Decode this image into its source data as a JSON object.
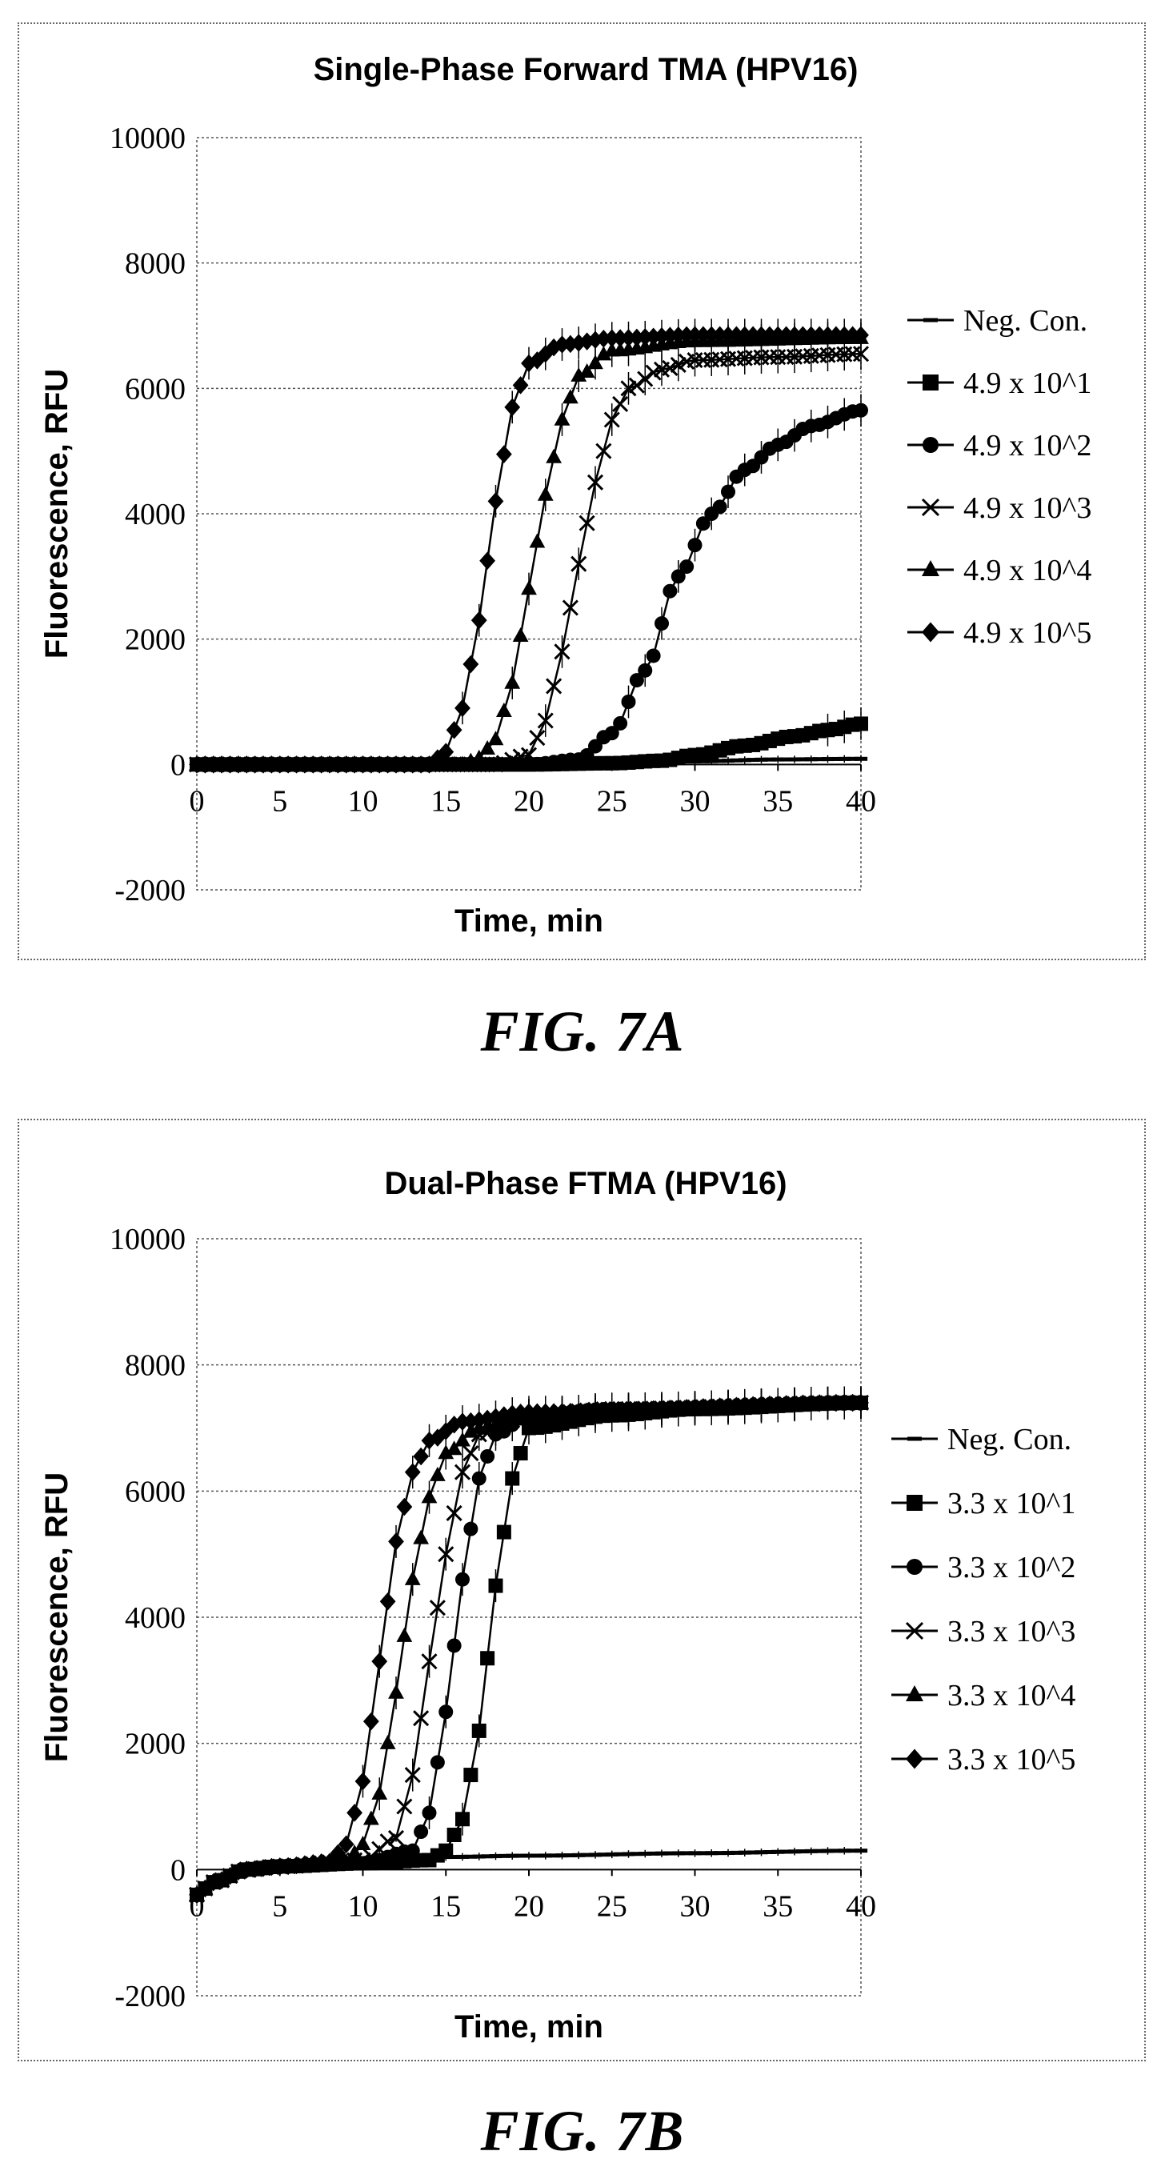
{
  "chart_data": [
    {
      "type": "line",
      "title": "Single-Phase Forward TMA (HPV16)",
      "xlabel": "Time, min",
      "ylabel": "Fluorescence, RFU",
      "xlim": [
        0,
        40
      ],
      "ylim": [
        -2000,
        10000
      ],
      "xticks": [
        "0",
        "5",
        "10",
        "15",
        "20",
        "25",
        "30",
        "35",
        "40"
      ],
      "yticks": [
        "-2000",
        "0",
        "2000",
        "4000",
        "6000",
        "8000",
        "10000"
      ],
      "grid": true,
      "legend_position": "right",
      "series": [
        {
          "name": "Neg. Con.",
          "marker": "dash",
          "x": [
            0,
            5,
            10,
            15,
            20,
            25,
            30,
            35,
            40
          ],
          "y": [
            0,
            0,
            0,
            0,
            0,
            20,
            50,
            80,
            90
          ]
        },
        {
          "name": "4.9 x 10^1",
          "marker": "square",
          "x": [
            0,
            10,
            20,
            25,
            28,
            30,
            33,
            36,
            38,
            40
          ],
          "y": [
            0,
            0,
            0,
            20,
            60,
            150,
            300,
            450,
            550,
            650
          ]
        },
        {
          "name": "4.9 x 10^2",
          "marker": "circle",
          "x": [
            0,
            10,
            20,
            23,
            25,
            27,
            29,
            31,
            33,
            35,
            37,
            40
          ],
          "y": [
            0,
            0,
            0,
            80,
            500,
            1500,
            3000,
            4000,
            4700,
            5100,
            5400,
            5650
          ]
        },
        {
          "name": "4.9 x 10^3",
          "marker": "x",
          "x": [
            0,
            10,
            18,
            20,
            21,
            22,
            23,
            24,
            25,
            26,
            28,
            30,
            35,
            40
          ],
          "y": [
            0,
            0,
            0,
            150,
            700,
            1800,
            3200,
            4500,
            5500,
            6000,
            6300,
            6450,
            6500,
            6550
          ]
        },
        {
          "name": "4.9 x 10^4",
          "marker": "triangle",
          "x": [
            0,
            10,
            16,
            17,
            18,
            19,
            20,
            21,
            22,
            23,
            25,
            30,
            40
          ],
          "y": [
            0,
            0,
            0,
            100,
            400,
            1300,
            2800,
            4300,
            5500,
            6200,
            6600,
            6750,
            6800
          ]
        },
        {
          "name": "4.9 x 10^5",
          "marker": "diamond",
          "x": [
            0,
            10,
            14,
            15,
            16,
            17,
            18,
            19,
            20,
            22,
            25,
            30,
            40
          ],
          "y": [
            0,
            0,
            0,
            200,
            900,
            2300,
            4200,
            5700,
            6400,
            6700,
            6800,
            6850,
            6850
          ]
        }
      ]
    },
    {
      "type": "line",
      "title": "Dual-Phase FTMA (HPV16)",
      "xlabel": "Time, min",
      "ylabel": "Fluorescence, RFU",
      "xlim": [
        0,
        40
      ],
      "ylim": [
        -2000,
        10000
      ],
      "xticks": [
        "0",
        "5",
        "10",
        "15",
        "20",
        "25",
        "30",
        "35",
        "40"
      ],
      "yticks": [
        "-2000",
        "0",
        "2000",
        "4000",
        "6000",
        "8000",
        "10000"
      ],
      "grid": true,
      "legend_position": "right",
      "series": [
        {
          "name": "Neg. Con.",
          "marker": "dash",
          "x": [
            0,
            1,
            2,
            3,
            5,
            8,
            12,
            15,
            20,
            30,
            40
          ],
          "y": [
            -400,
            -200,
            -60,
            0,
            50,
            100,
            150,
            200,
            220,
            260,
            300
          ]
        },
        {
          "name": "3.3 x 10^1",
          "marker": "square",
          "x": [
            0,
            1,
            3,
            5,
            10,
            14,
            15,
            16,
            17,
            18,
            19,
            20,
            25,
            30,
            40
          ],
          "y": [
            -400,
            -200,
            0,
            50,
            100,
            150,
            300,
            800,
            2200,
            4500,
            6200,
            7000,
            7200,
            7300,
            7400
          ]
        },
        {
          "name": "3.3 x 10^2",
          "marker": "circle",
          "x": [
            0,
            1,
            3,
            5,
            10,
            13,
            14,
            15,
            16,
            17,
            18,
            20,
            25,
            40
          ],
          "y": [
            -400,
            -200,
            0,
            50,
            100,
            300,
            900,
            2500,
            4600,
            6200,
            6900,
            7200,
            7300,
            7400
          ]
        },
        {
          "name": "3.3 x 10^3",
          "marker": "x",
          "x": [
            0,
            1,
            3,
            5,
            10,
            12,
            13,
            14,
            15,
            16,
            17,
            20,
            25,
            40
          ],
          "y": [
            -400,
            -200,
            0,
            50,
            150,
            500,
            1500,
            3300,
            5000,
            6300,
            6900,
            7200,
            7300,
            7400
          ]
        },
        {
          "name": "3.3 x 10^4",
          "marker": "triangle",
          "x": [
            0,
            1,
            3,
            5,
            9,
            10,
            11,
            12,
            13,
            14,
            15,
            17,
            20,
            40
          ],
          "y": [
            -400,
            -200,
            0,
            50,
            120,
            400,
            1200,
            2800,
            4600,
            5900,
            6600,
            7000,
            7200,
            7400
          ]
        },
        {
          "name": "3.3 x 10^5",
          "marker": "diamond",
          "x": [
            0,
            1,
            3,
            5,
            8,
            9,
            10,
            11,
            12,
            13,
            14,
            16,
            20,
            40
          ],
          "y": [
            -400,
            -200,
            0,
            50,
            120,
            400,
            1400,
            3300,
            5200,
            6300,
            6800,
            7100,
            7250,
            7400
          ]
        }
      ]
    }
  ],
  "figure_labels": [
    "FIG. 7A",
    "FIG. 7B"
  ]
}
